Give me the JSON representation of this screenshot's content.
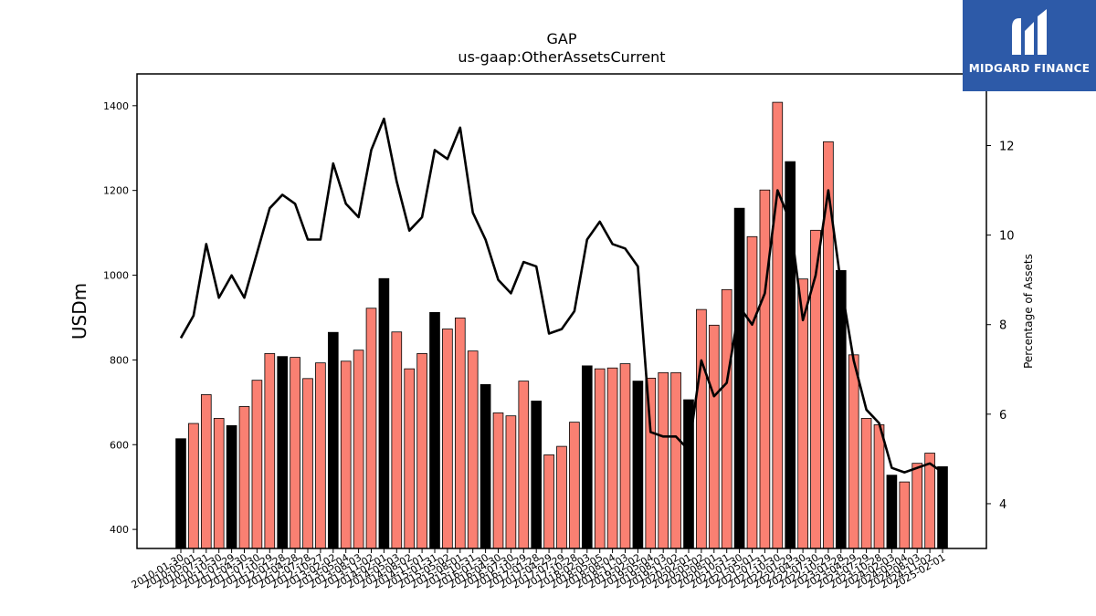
{
  "brand": {
    "name": "MIDGARD FINANCE",
    "bg_color": "#2d5aa8",
    "icon": "midgard-logo-icon"
  },
  "chart_data": {
    "type": "bar",
    "title": "GAP",
    "subtitle": "us-gaap:OtherAssetsCurrent",
    "ylabel": "USDm",
    "y2label": "Percentage of Assets",
    "ylim": [
      355,
      1475
    ],
    "y2lim": [
      3.0,
      13.6
    ],
    "yticks": [
      400,
      600,
      800,
      1000,
      1200,
      1400
    ],
    "y2ticks": [
      4,
      6,
      8,
      10,
      12
    ],
    "colors": {
      "annual": "#000000",
      "quarterly": "#fa8072",
      "line": "#000000"
    },
    "x_tick_labels": [
      "2010-01-30",
      "2010-05-01",
      "2010-07-31",
      "2010-10-30",
      "2011-01-29",
      "2011-04-30",
      "2011-07-30",
      "2011-10-29",
      "2012-01-28",
      "2012-04-28",
      "2012-07-28",
      "2012-10-27",
      "2013-02-02",
      "2013-05-04",
      "2013-08-03",
      "2013-11-02",
      "2014-02-01",
      "2014-05-03",
      "2014-08-02",
      "2014-11-01",
      "2015-01-31",
      "2015-05-02",
      "2015-08-01",
      "2015-10-31",
      "2016-01-30",
      "2016-04-30",
      "2016-07-30",
      "2016-10-29",
      "2017-01-28",
      "2017-04-29",
      "2017-07-29",
      "2017-10-28",
      "2018-02-03",
      "2018-05-05",
      "2018-08-04",
      "2018-11-03",
      "2019-02-02",
      "2019-05-04",
      "2019-08-03",
      "2019-11-02",
      "2020-02-01",
      "2020-05-02",
      "2020-08-01",
      "2020-10-31",
      "2021-01-30",
      "2021-05-01",
      "2021-07-31",
      "2021-10-30",
      "2022-01-29",
      "2022-04-30",
      "2022-07-30",
      "2022-10-29",
      "2023-01-28",
      "2023-04-29",
      "2023-07-29",
      "2023-10-28",
      "2024-02-03",
      "2024-05-04",
      "2024-08-03",
      "2024-11-02",
      "2025-02-01"
    ],
    "values": [
      614,
      650,
      718,
      662,
      645,
      690,
      752,
      815,
      808,
      806,
      756,
      793,
      865,
      797,
      823,
      922,
      992,
      866,
      779,
      815,
      912,
      873,
      899,
      821,
      742,
      675,
      668,
      750,
      703,
      576,
      596,
      653,
      786,
      779,
      781,
      791,
      750,
      757,
      770,
      770,
      706,
      919,
      882,
      966,
      1158,
      1091,
      1201,
      1408,
      1268,
      991,
      1106,
      1315,
      1011,
      812,
      662,
      647,
      528,
      512,
      556,
      580,
      548
    ],
    "is_annual": [
      true,
      false,
      false,
      false,
      true,
      false,
      false,
      false,
      true,
      false,
      false,
      false,
      true,
      false,
      false,
      false,
      true,
      false,
      false,
      false,
      true,
      false,
      false,
      false,
      true,
      false,
      false,
      false,
      true,
      false,
      false,
      false,
      true,
      false,
      false,
      false,
      true,
      false,
      false,
      false,
      true,
      false,
      false,
      false,
      true,
      false,
      false,
      false,
      true,
      false,
      false,
      false,
      true,
      false,
      false,
      false,
      true,
      false,
      false,
      false,
      true
    ],
    "pct_of_assets": [
      7.7,
      8.2,
      9.8,
      8.6,
      9.1,
      8.6,
      9.6,
      10.6,
      10.9,
      10.7,
      9.9,
      9.9,
      11.6,
      10.7,
      10.4,
      11.9,
      12.6,
      11.2,
      10.1,
      10.4,
      11.9,
      11.7,
      12.4,
      10.5,
      9.9,
      9.0,
      8.7,
      9.4,
      9.3,
      7.8,
      7.9,
      8.3,
      9.9,
      10.3,
      9.8,
      9.7,
      9.3,
      5.6,
      5.5,
      5.5,
      5.2,
      7.2,
      6.4,
      6.7,
      8.4,
      8.0,
      8.7,
      11.0,
      10.3,
      8.1,
      9.1,
      11.0,
      8.9,
      7.2,
      6.1,
      5.8,
      4.8,
      4.7,
      4.8,
      4.9,
      4.7
    ]
  }
}
